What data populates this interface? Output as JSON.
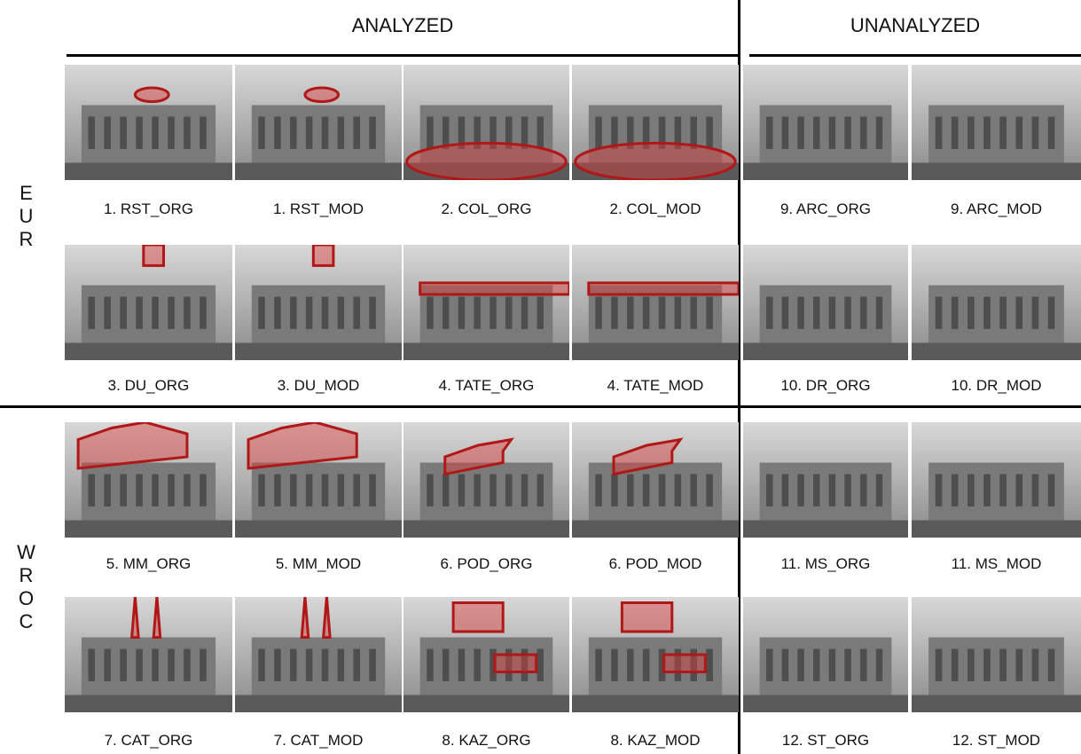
{
  "headers": [
    "ANALYZED",
    "UNANALYZED"
  ],
  "row_groups": [
    "EUR",
    "WROC"
  ],
  "rows": [
    [
      "1. RST_ORG",
      "1. RST_MOD",
      "2. COL_ORG",
      "2. COL_MOD",
      "9. ARC_ORG",
      "9. ARC_MOD"
    ],
    [
      "3. DU_ORG",
      "3. DU_MOD",
      "4. TATE_ORG",
      "4. TATE_MOD",
      "10. DR_ORG",
      "10. DR_MOD"
    ],
    [
      "5. MM_ORG",
      "5. MM_MOD",
      "6. POD_ORG",
      "6. POD_MOD",
      "11. MS_ORG",
      "11. MS_MOD"
    ],
    [
      "7. CAT_ORG",
      "7. CAT_MOD",
      "8. KAZ_ORG",
      "8. KAZ_MOD",
      "12. ST_ORG",
      "12. ST_MOD"
    ]
  ]
}
